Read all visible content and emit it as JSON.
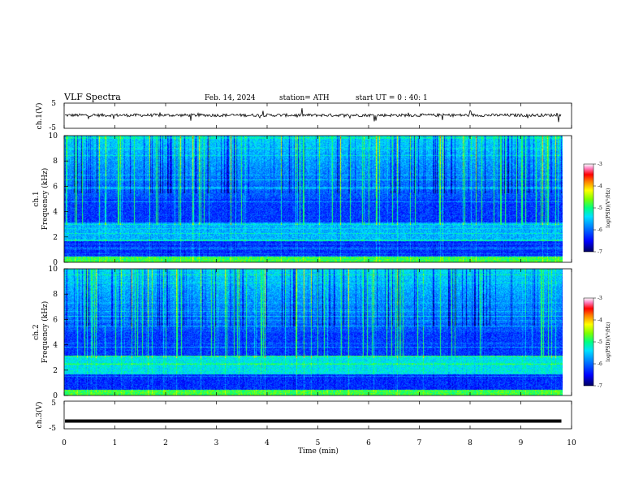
{
  "header": {
    "title": "VLF Spectra",
    "date": "Feb. 14, 2024",
    "station": "station= ATH",
    "start": "start UT =  0 : 40: 1"
  },
  "chart_data": [
    {
      "type": "line",
      "name": "ch1-waveform",
      "ylabel": "ch.1(V)",
      "ylim": [
        -5,
        5
      ],
      "y_ticks": [
        "5",
        "-5"
      ],
      "xlim": [
        0,
        10
      ],
      "level": 0.2
    },
    {
      "type": "heatmap",
      "name": "ch1-spectrogram",
      "ylabel": "ch.1\nFrequency (kHz)",
      "ylim": [
        0,
        10
      ],
      "y_ticks": [
        "0",
        "2",
        "4",
        "6",
        "8",
        "10"
      ],
      "xlim": [
        0,
        9.8
      ],
      "colorbar": {
        "label": "log(PSD)(V²/Hz)",
        "range": [
          -7,
          -3
        ],
        "ticks": [
          "-3",
          "-4",
          "-5",
          "-6",
          "-7"
        ],
        "colors": [
          "#000070",
          "#0040ff",
          "#00c0ff",
          "#00ff80",
          "#80ff00",
          "#ffff00",
          "#ff8000",
          "#ff0000",
          "#ff80ff",
          "#ffffff"
        ]
      }
    },
    {
      "type": "heatmap",
      "name": "ch2-spectrogram",
      "ylabel": "ch.2\nFrequency (kHz)",
      "ylim": [
        0,
        10
      ],
      "y_ticks": [
        "0",
        "2",
        "4",
        "6",
        "8",
        "10"
      ],
      "xlim": [
        0,
        9.8
      ],
      "colorbar": {
        "label": "log(PSD)(V²/Hz)",
        "range": [
          -7,
          -3
        ],
        "ticks": [
          "-3",
          "-4",
          "-5",
          "-6",
          "-7"
        ]
      }
    },
    {
      "type": "line",
      "name": "ch3-waveform",
      "ylabel": "ch.3(V)",
      "ylim": [
        -5,
        5
      ],
      "y_ticks": [
        "5",
        "-5"
      ],
      "xlim": [
        0,
        9.8
      ],
      "level": -2.2
    }
  ],
  "x_axis": {
    "label": "Time (min)",
    "range": [
      0,
      10
    ],
    "ticks": [
      "0",
      "1",
      "2",
      "3",
      "4",
      "5",
      "6",
      "7",
      "8",
      "9",
      "10"
    ]
  }
}
